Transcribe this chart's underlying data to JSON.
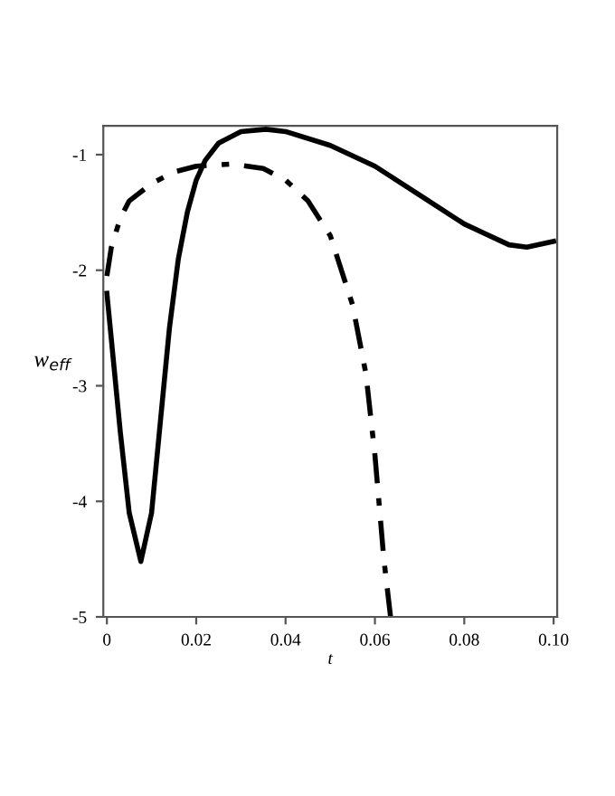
{
  "chart_data": {
    "type": "line",
    "xlabel": "t",
    "ylabel": "w$_{eff}$",
    "xlim": [
      -0.0008,
      0.1008
    ],
    "ylim": [
      -5,
      -0.75
    ],
    "xticks": [
      0,
      0.02,
      0.04,
      0.06,
      0.08,
      {
        "value": 0.1,
        "label": "0.10"
      }
    ],
    "yticks": [
      -5,
      -4,
      -3,
      -2,
      -1
    ],
    "grid": false,
    "legend": false,
    "series": [
      {
        "color": "#000000",
        "line_style": "solid",
        "x": [
          0,
          0.001,
          0.003,
          0.005,
          0.0076,
          0.01,
          0.012,
          0.014,
          0.016,
          0.018,
          0.02,
          0.022,
          0.025,
          0.03,
          0.0356,
          0.04,
          0.05,
          0.06,
          0.07,
          0.08,
          0.09,
          0.094,
          0.1
        ],
        "values": [
          -2.2,
          -2.6,
          -3.4,
          -4.1,
          -4.52,
          -4.1,
          -3.3,
          -2.5,
          -1.9,
          -1.5,
          -1.22,
          -1.05,
          -0.9,
          -0.8,
          -0.78,
          -0.8,
          -0.92,
          -1.1,
          -1.35,
          -1.6,
          -1.78,
          -1.8,
          -1.75
        ]
      },
      {
        "color": "#000000",
        "line_style": "dashdot",
        "x": [
          0,
          0.001,
          0.003,
          0.005,
          0.01,
          0.015,
          0.02,
          0.028,
          0.035,
          0.04,
          0.045,
          0.05,
          0.055,
          0.058,
          0.06,
          0.062,
          0.0635
        ],
        "values": [
          -2.05,
          -1.8,
          -1.55,
          -1.4,
          -1.25,
          -1.15,
          -1.1,
          -1.08,
          -1.12,
          -1.22,
          -1.4,
          -1.7,
          -2.3,
          -2.9,
          -3.6,
          -4.5,
          -5
        ]
      }
    ]
  }
}
